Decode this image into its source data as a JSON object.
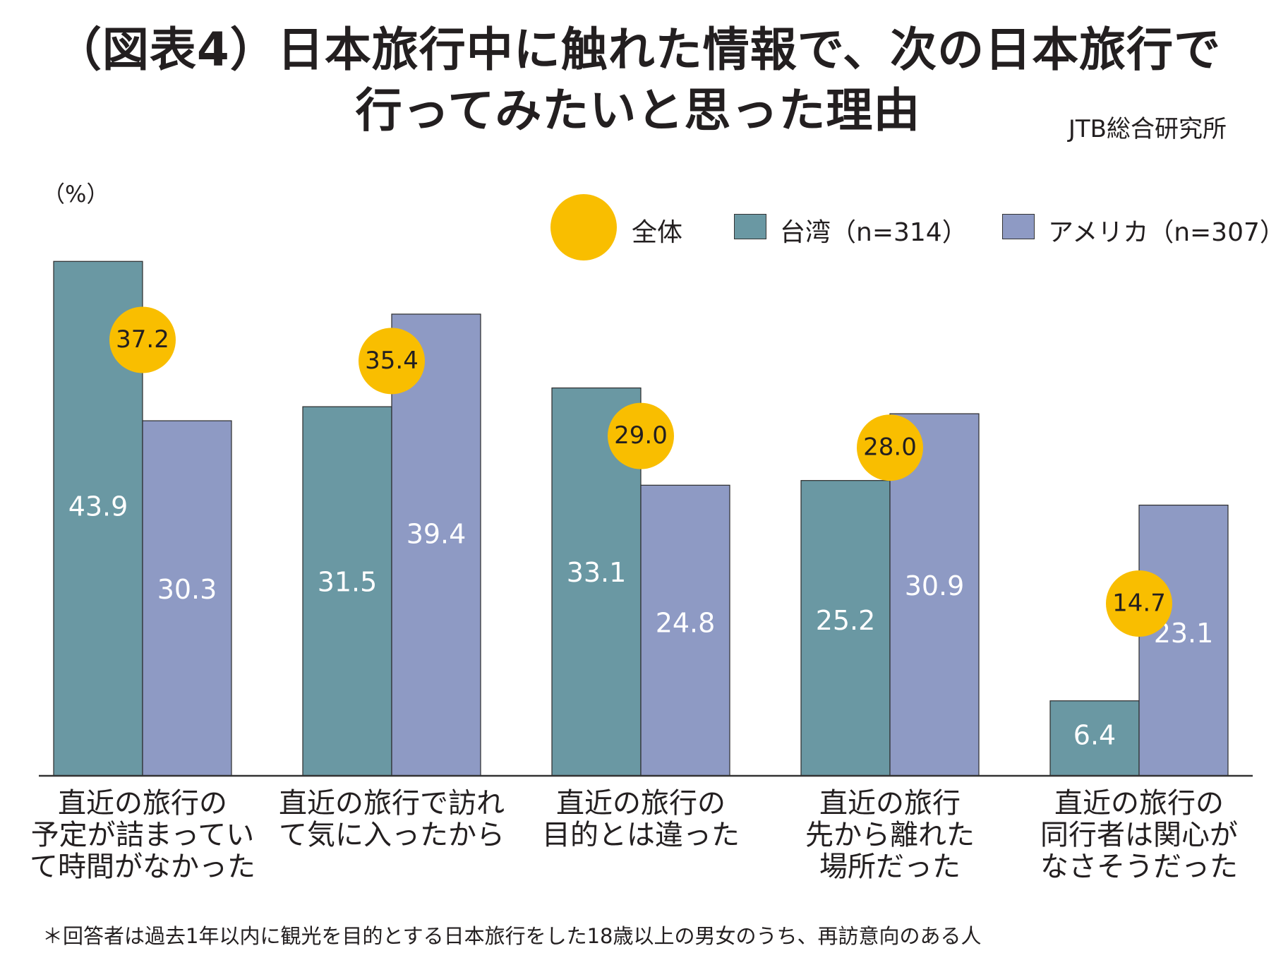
{
  "title_line1": "（図表4）日本旅行中に触れた情報で、次の日本旅行で",
  "title_line2": "行ってみたいと思った理由",
  "source": "JTB総合研究所",
  "unit_label": "（%）",
  "legend": {
    "overall": "全体",
    "taiwan": "台湾（n=314）",
    "usa": "アメリカ（n=307）"
  },
  "colors": {
    "overall": "#f9be00",
    "taiwan": "#6a98a3",
    "usa": "#8e9ac4",
    "axis": "#333333"
  },
  "footnote": "＊回答者は過去1年以内に観光を目的とする日本旅行をした18歳以上の男女のうち、再訪意向のある人",
  "chart_data": {
    "type": "bar",
    "title": "（図表4）日本旅行中に触れた情報で、次の日本旅行で行ってみたいと思った理由",
    "ylabel": "（%）",
    "categories": [
      "直近の旅行の予定が詰まっていて時間がなかった",
      "直近の旅行で訪れて気に入ったから",
      "直近の旅行の目的とは違った",
      "直近の旅行先から離れた場所だった",
      "直近の旅行の同行者は関心がなさそうだった"
    ],
    "category_lines": [
      [
        "直近の旅行の",
        "予定が詰まってい",
        "て時間がなかった"
      ],
      [
        "直近の旅行で訪れ",
        "て気に入ったから"
      ],
      [
        "直近の旅行の",
        "目的とは違った"
      ],
      [
        "直近の旅行",
        "先から離れた",
        "場所だった"
      ],
      [
        "直近の旅行の",
        "同行者は関心が",
        "なさそうだった"
      ]
    ],
    "series": [
      {
        "name": "台湾（n=314）",
        "values": [
          43.9,
          31.5,
          33.1,
          25.2,
          6.4
        ]
      },
      {
        "name": "アメリカ（n=307）",
        "values": [
          30.3,
          39.4,
          24.8,
          30.9,
          23.1
        ]
      }
    ],
    "overall": {
      "name": "全体",
      "values": [
        37.2,
        35.4,
        29.0,
        28.0,
        14.7
      ]
    },
    "value_labels": {
      "taiwan": [
        "43.9",
        "31.5",
        "33.1",
        "25.2",
        "6.4"
      ],
      "usa": [
        "30.3",
        "39.4",
        "24.8",
        "30.9",
        "23.1"
      ],
      "overall": [
        "37.2",
        "35.4",
        "29.0",
        "28.0",
        "14.7"
      ]
    },
    "ylim": [
      0,
      50
    ],
    "legend_position": "top-right",
    "grid": false
  }
}
